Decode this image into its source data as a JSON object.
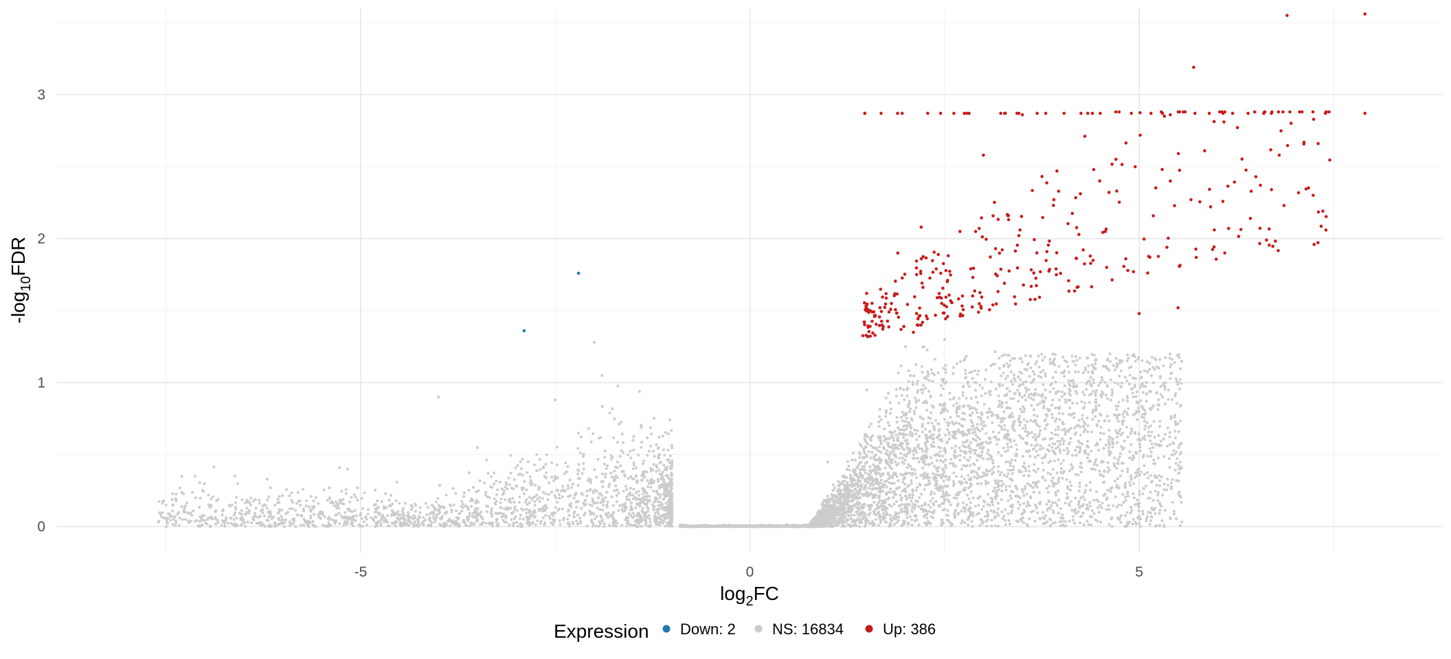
{
  "chart_data": {
    "type": "scatter",
    "title": "",
    "xlabel": "log2FC",
    "xlabel_base": "log",
    "xlabel_sub": "2",
    "xlabel_rest": "FC",
    "ylabel": "-log10FDR",
    "ylabel_base": "-log",
    "ylabel_sub": "10",
    "ylabel_rest": "FDR",
    "xlim": [
      -8.9,
      8.9
    ],
    "ylim": [
      -0.18,
      3.6
    ],
    "x_ticks": [
      -5,
      0,
      5
    ],
    "x_tick_labels": [
      "-5",
      "0",
      "5"
    ],
    "x_minor_ticks": [
      -7.5,
      -2.5,
      2.5,
      7.5
    ],
    "y_ticks": [
      0,
      1,
      2,
      3
    ],
    "y_tick_labels": [
      "0",
      "1",
      "2",
      "3"
    ],
    "y_minor_ticks": [
      0.5,
      1.5,
      2.5,
      3.5
    ],
    "grid": true,
    "legend_position": "bottom",
    "legend": {
      "title": "Expression",
      "entries": [
        {
          "key": "Down",
          "label": "Down: 2",
          "color": "#1f78b4"
        },
        {
          "key": "NS",
          "label": "NS: 16834",
          "color": "#cccccc"
        },
        {
          "key": "Up",
          "label": "Up: 386",
          "color": "#c71c1c"
        }
      ]
    },
    "series": [
      {
        "name": "Down: 2",
        "key": "Down",
        "color": "#1f78b4",
        "x": [
          -2.2,
          -2.9
        ],
        "y": [
          1.76,
          1.36
        ]
      },
      {
        "name": "Up: 386",
        "key": "Up",
        "color": "#c71c1c",
        "x": [
          6.9,
          7.9,
          5.7,
          3.5,
          3.8,
          4.4,
          4.5,
          4.9,
          5.3,
          5.4,
          5.9,
          6.2,
          6.4,
          6.6,
          6.7,
          7.9,
          7.3,
          2.2,
          3.0,
          2.9,
          1.9,
          1.5,
          1.7,
          6.8,
          6.5,
          7.4,
          6.7,
          5.0,
          5.5,
          2.1
        ],
        "y": [
          3.55,
          3.56,
          3.19,
          2.86,
          2.87,
          2.87,
          2.87,
          2.87,
          2.87,
          2.86,
          2.87,
          2.87,
          2.87,
          2.87,
          2.87,
          2.87,
          2.66,
          2.08,
          2.58,
          2.05,
          1.9,
          1.62,
          1.4,
          2.58,
          2.43,
          2.06,
          2.34,
          1.48,
          1.52,
          1.35
        ],
        "generated_additional_points": 356
      },
      {
        "name": "NS: 16834",
        "key": "NS",
        "color": "#cccccc",
        "x": [
          -7.5,
          -6.2,
          -5.4,
          -4.0,
          -3.5,
          -2.5,
          -2.0,
          -1.9,
          -1.5,
          -1.0,
          0.0,
          1.0,
          1.5,
          2.0,
          2.5,
          3.0,
          3.8,
          4.5,
          5.0,
          5.3
        ],
        "y": [
          0.15,
          0.33,
          0.27,
          0.9,
          0.55,
          0.88,
          1.28,
          1.05,
          0.6,
          0.3,
          0.0,
          0.45,
          0.95,
          1.25,
          1.3,
          0.55,
          0.5,
          1.0,
          0.8,
          0.9
        ],
        "generated_additional_points": 6500
      }
    ]
  }
}
